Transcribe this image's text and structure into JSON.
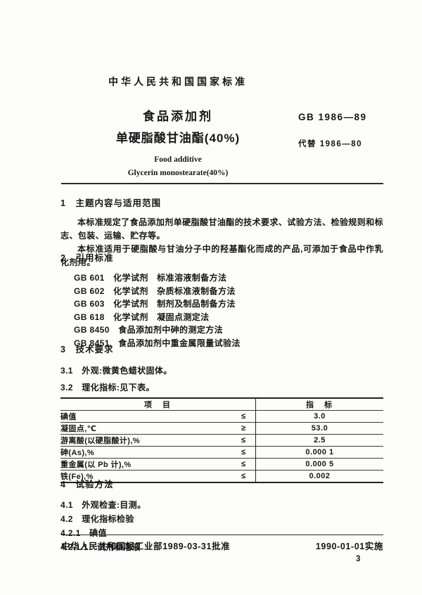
{
  "header": {
    "national_standard": "中华人民共和国国家标准",
    "title_cn_line1": "食品添加剂",
    "title_cn_line2": "单硬脂酸甘油酯(40%)",
    "title_en_line1": "Food additive",
    "title_en_line2": "Glycerin monostearate(40%)",
    "standard_code": "GB 1986—89",
    "replaces": "代替 1986—80"
  },
  "sections": {
    "scope": {
      "heading": "1　主题内容与适用范围",
      "para1": "本标准规定了食品添加剂单硬脂酸甘油酯的技术要求、试验方法、检验规则和标志、包装、运输、贮存等。",
      "para2": "本标准适用于硬脂酸与甘油分子中的羟基酯化而成的产品,可添加于食品中作乳化剂用。"
    },
    "references": {
      "heading": "2　引用标准",
      "items": [
        {
          "text": "GB 601　化学试剂　标准溶液制备方法"
        },
        {
          "text": "GB 602　化学试剂　杂质标准液制备方法"
        },
        {
          "text": "GB 603　化学试剂　制剂及制品制备方法"
        },
        {
          "text": "GB 618　化学试剂　凝固点测定法"
        },
        {
          "text": "GB 8450　食品添加剂中砷的测定方法"
        },
        {
          "text": "GB 8451　食品添加剂中重金属限量试验法"
        }
      ]
    },
    "technical": {
      "heading": "3　技术要求",
      "clause_3_1": "3.1　外观:微黄色蜡状固体。",
      "clause_3_2": "3.2　理化指标:见下表。",
      "table": {
        "col_item": "项　目",
        "col_value": "指　标",
        "rows": [
          {
            "item": "碘值",
            "rel": "≤",
            "value": "3.0"
          },
          {
            "item": "凝固点,℃",
            "rel": "≥",
            "value": "53.0"
          },
          {
            "item": "游离酸(以硬脂酸计),%",
            "rel": "≤",
            "value": "2.5"
          },
          {
            "item": "砷(As),%",
            "rel": "≤",
            "value": "0.000 1"
          },
          {
            "item": "重金属(以 Pb 计),%",
            "rel": "≤",
            "value": "0.000 5"
          },
          {
            "item": "铁(Fe),%",
            "rel": "≤",
            "value": "0.002"
          }
        ]
      }
    },
    "methods": {
      "heading": "4　试验方法",
      "clause_4_1": "4.1　外观检查:目测。",
      "clause_4_2": "4.2　理化指标检验",
      "clause_4_2_1": "4.2.1　碘值",
      "clause_4_2_1_1": "4.2.1.1　试剂和溶液"
    }
  },
  "footer": {
    "approval": "中华人民共和国轻工业部1989-03-31批准",
    "implementation": "1990-01-01实施",
    "page_number": "3"
  }
}
